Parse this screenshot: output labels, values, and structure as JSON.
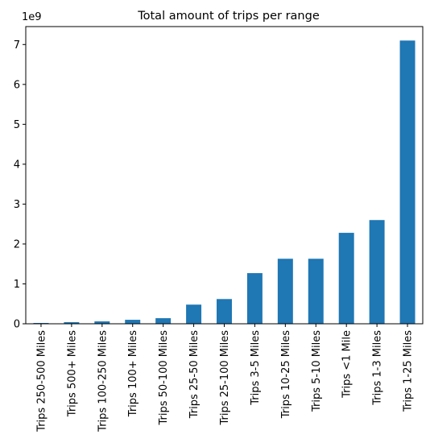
{
  "chart_data": {
    "type": "bar",
    "title": "Total amount of trips per range",
    "xlabel": "",
    "ylabel": "",
    "y_scale_label": "1e9",
    "y_multiplier": 1000000000,
    "ylim": [
      0,
      7.45
    ],
    "yticks": [
      0,
      1,
      2,
      3,
      4,
      5,
      6,
      7
    ],
    "grid": false,
    "legend": "none",
    "color": "#1f77b4",
    "categories": [
      "Trips 250-500 Miles",
      "Trips 500+ Miles",
      "Trips 100-250 Miles",
      "Trips 100+ Miles",
      "Trips 50-100 Miles",
      "Trips 25-50 Miles",
      "Trips 25-100 Miles",
      "Trips 3-5 Miles",
      "Trips 10-25 Miles",
      "Trips 5-10 Miles",
      "Trips <1 Mile",
      "Trips 1-3 Miles",
      "Trips 1-25 Miles"
    ],
    "values": [
      0.02,
      0.04,
      0.06,
      0.1,
      0.14,
      0.48,
      0.62,
      1.27,
      1.63,
      1.63,
      2.28,
      2.6,
      7.1
    ]
  }
}
